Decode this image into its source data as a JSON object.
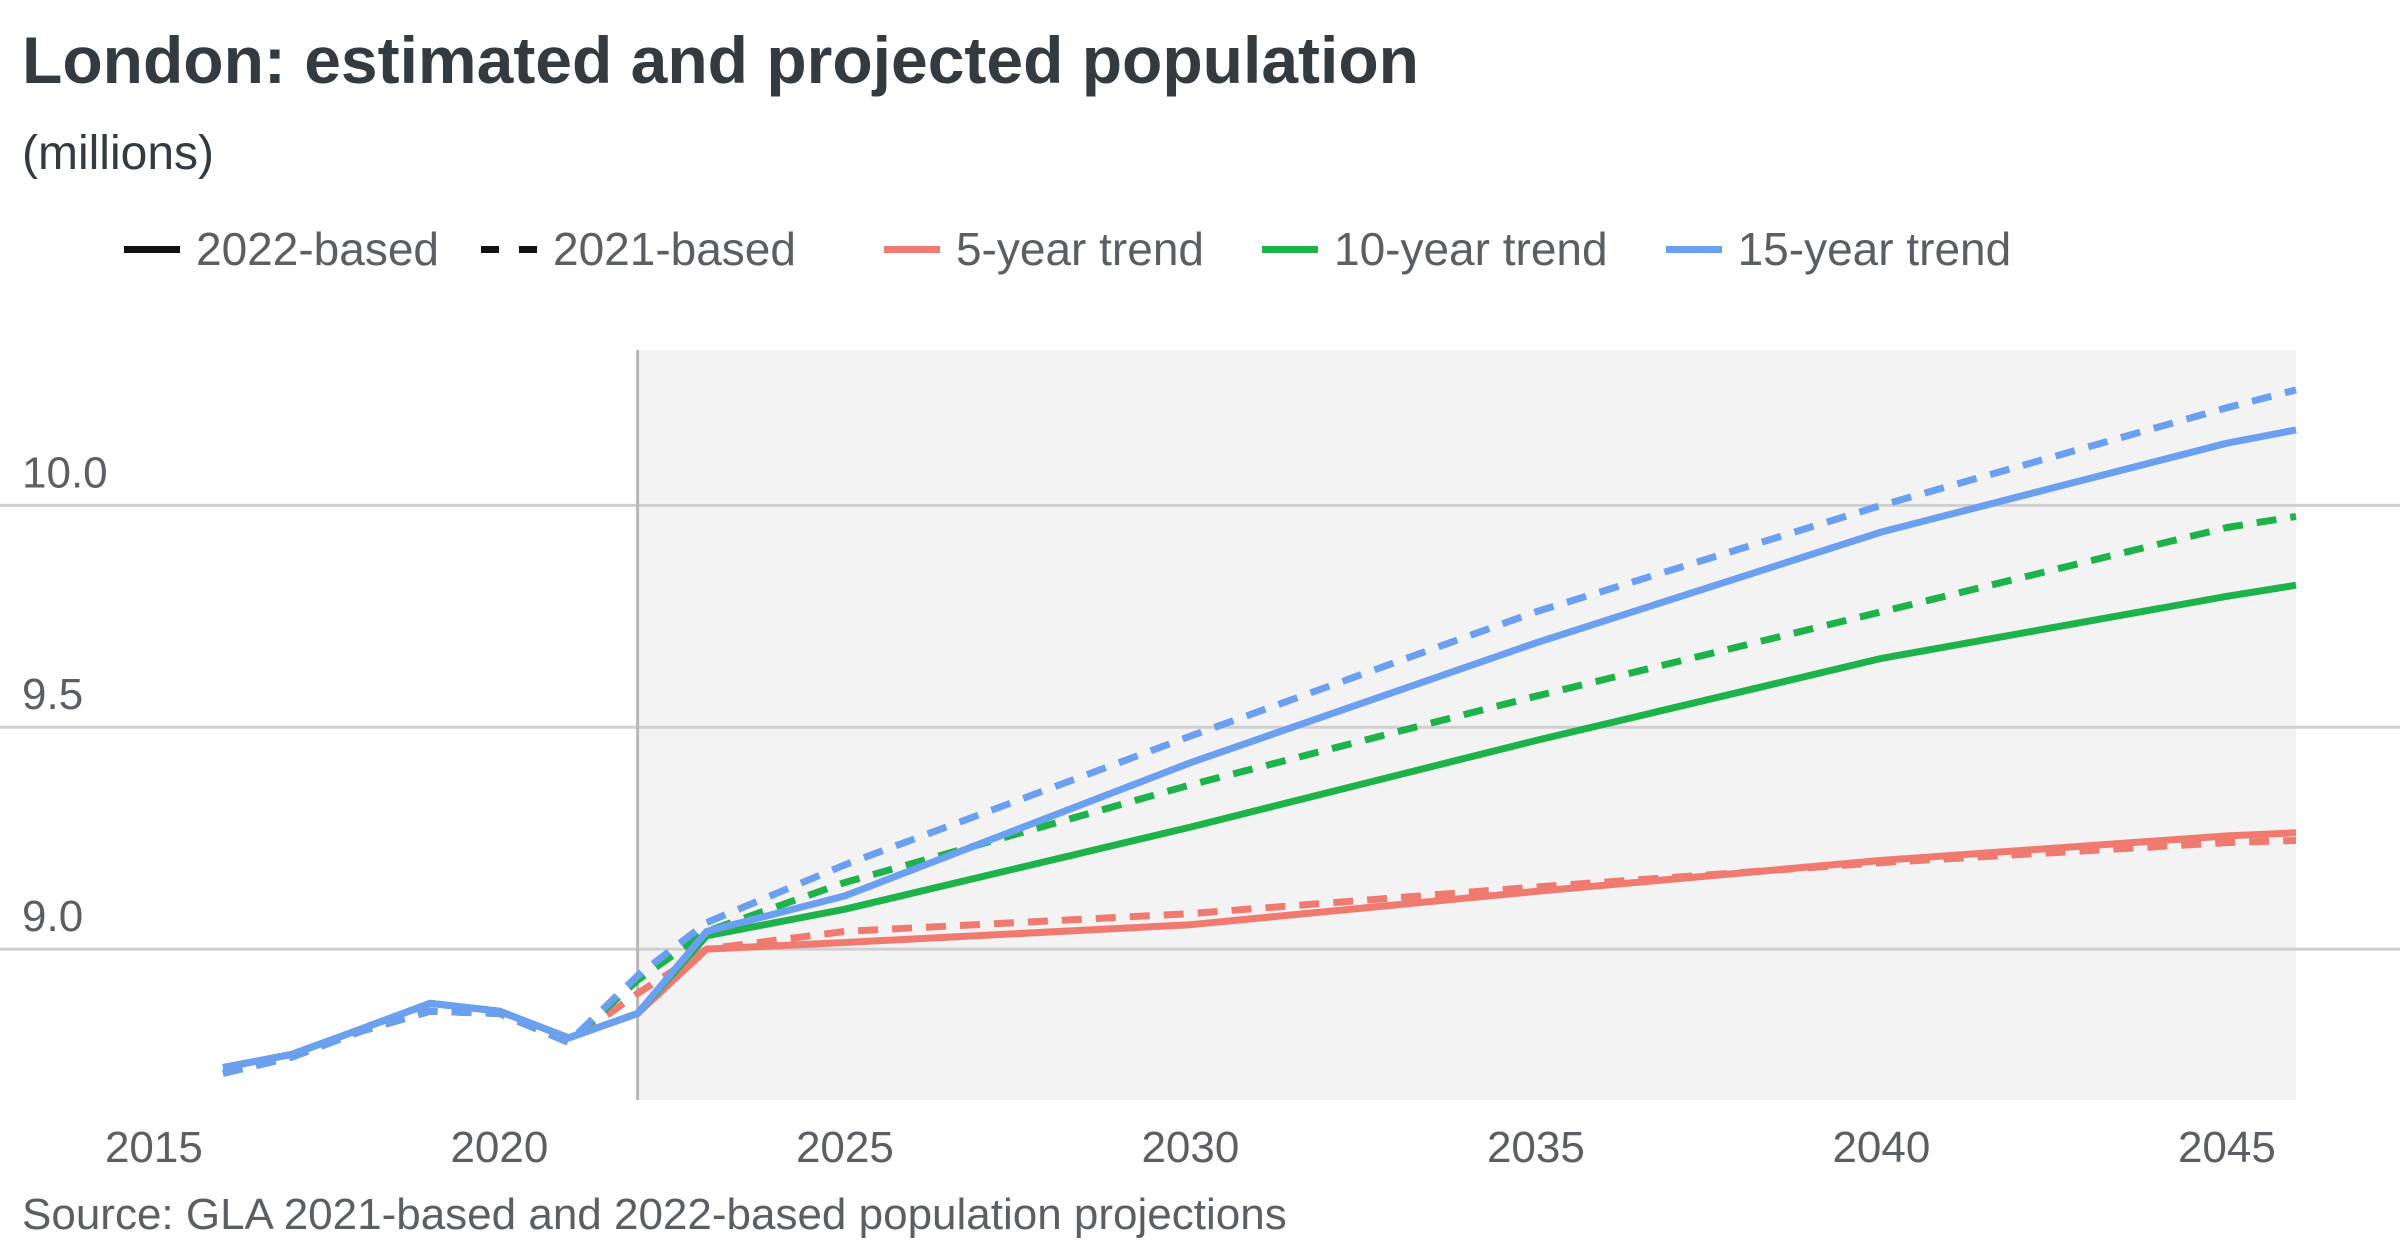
{
  "title": "London: estimated and projected population",
  "subtitle": "(millions)",
  "source": "Source: GLA 2021-based and 2022-based population projections",
  "legend": [
    {
      "label": "2022-based",
      "style": "solid",
      "color": "#111111"
    },
    {
      "label": "2021-based",
      "style": "dashed",
      "color": "#111111"
    },
    {
      "label": "5-year trend",
      "style": "solid",
      "color": "#f07a70"
    },
    {
      "label": "10-year trend",
      "style": "solid",
      "color": "#1db34a"
    },
    {
      "label": "15-year trend",
      "style": "solid",
      "color": "#6b9ff2"
    }
  ],
  "chart_data": {
    "type": "line",
    "title": "London: estimated and projected population",
    "subtitle": "(millions)",
    "xlabel": "",
    "ylabel": "",
    "xlim": [
      2016,
      2046
    ],
    "ylim": [
      8.66,
      10.35
    ],
    "x_ticks": [
      2015,
      2020,
      2025,
      2030,
      2035,
      2040,
      2045
    ],
    "y_ticks": [
      9.0,
      9.5,
      10.0
    ],
    "y_tick_labels": [
      "9.0",
      "9.5",
      "10.0"
    ],
    "projection_start": 2022,
    "grid": true,
    "legend_position": "top",
    "series": [
      {
        "name": "5-year trend 2022-based",
        "color": "#f07a70",
        "style": "solid",
        "points": [
          [
            2016,
            8.733
          ],
          [
            2017,
            8.763
          ],
          [
            2018,
            8.82
          ],
          [
            2019,
            8.878
          ],
          [
            2020,
            8.86
          ],
          [
            2021,
            8.8
          ],
          [
            2022,
            8.855
          ],
          [
            2023,
            9.0
          ],
          [
            2025,
            9.015
          ],
          [
            2030,
            9.055
          ],
          [
            2035,
            9.13
          ],
          [
            2040,
            9.2
          ],
          [
            2045,
            9.255
          ],
          [
            2046,
            9.262
          ]
        ]
      },
      {
        "name": "5-year trend 2021-based",
        "color": "#f07a70",
        "style": "dashed",
        "points": [
          [
            2016,
            8.72
          ],
          [
            2017,
            8.757
          ],
          [
            2018,
            8.815
          ],
          [
            2019,
            8.86
          ],
          [
            2020,
            8.855
          ],
          [
            2021,
            8.79
          ],
          [
            2022,
            8.9
          ],
          [
            2023,
            9.0
          ],
          [
            2025,
            9.04
          ],
          [
            2030,
            9.08
          ],
          [
            2035,
            9.14
          ],
          [
            2040,
            9.195
          ],
          [
            2045,
            9.24
          ],
          [
            2046,
            9.245
          ]
        ]
      },
      {
        "name": "10-year trend 2022-based",
        "color": "#1db34a",
        "style": "solid",
        "points": [
          [
            2016,
            8.733
          ],
          [
            2017,
            8.763
          ],
          [
            2018,
            8.82
          ],
          [
            2019,
            8.878
          ],
          [
            2020,
            8.86
          ],
          [
            2021,
            8.8
          ],
          [
            2022,
            8.855
          ],
          [
            2023,
            9.03
          ],
          [
            2025,
            9.09
          ],
          [
            2030,
            9.275
          ],
          [
            2035,
            9.47
          ],
          [
            2040,
            9.655
          ],
          [
            2045,
            9.795
          ],
          [
            2046,
            9.82
          ]
        ]
      },
      {
        "name": "10-year trend 2021-based",
        "color": "#1db34a",
        "style": "dashed",
        "points": [
          [
            2016,
            8.72
          ],
          [
            2017,
            8.757
          ],
          [
            2018,
            8.815
          ],
          [
            2019,
            8.86
          ],
          [
            2020,
            8.855
          ],
          [
            2021,
            8.79
          ],
          [
            2022,
            8.93
          ],
          [
            2023,
            9.04
          ],
          [
            2025,
            9.15
          ],
          [
            2030,
            9.37
          ],
          [
            2035,
            9.57
          ],
          [
            2040,
            9.76
          ],
          [
            2045,
            9.95
          ],
          [
            2046,
            9.975
          ]
        ]
      },
      {
        "name": "15-year trend 2022-based",
        "color": "#6b9ff2",
        "style": "solid",
        "points": [
          [
            2016,
            8.733
          ],
          [
            2017,
            8.763
          ],
          [
            2018,
            8.82
          ],
          [
            2019,
            8.878
          ],
          [
            2020,
            8.86
          ],
          [
            2021,
            8.8
          ],
          [
            2022,
            8.855
          ],
          [
            2023,
            9.04
          ],
          [
            2025,
            9.12
          ],
          [
            2030,
            9.42
          ],
          [
            2035,
            9.69
          ],
          [
            2040,
            9.94
          ],
          [
            2045,
            10.14
          ],
          [
            2046,
            10.17
          ]
        ]
      },
      {
        "name": "15-year trend 2021-based",
        "color": "#6b9ff2",
        "style": "dashed",
        "points": [
          [
            2016,
            8.72
          ],
          [
            2017,
            8.757
          ],
          [
            2018,
            8.815
          ],
          [
            2019,
            8.86
          ],
          [
            2020,
            8.855
          ],
          [
            2021,
            8.79
          ],
          [
            2022,
            8.94
          ],
          [
            2023,
            9.06
          ],
          [
            2025,
            9.19
          ],
          [
            2030,
            9.48
          ],
          [
            2035,
            9.76
          ],
          [
            2040,
            10.0
          ],
          [
            2045,
            10.22
          ],
          [
            2046,
            10.26
          ]
        ]
      }
    ]
  }
}
